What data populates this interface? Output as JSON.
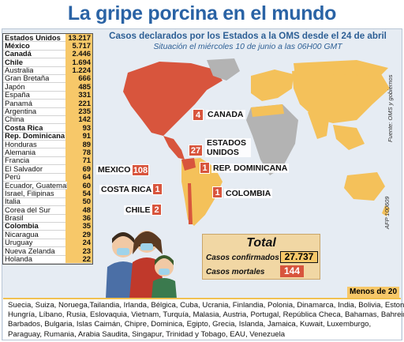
{
  "title": "La gripe porcina en el mundo",
  "heading": "Casos declarados por los Estados a la OMS desde el 24 de abril",
  "subheading": "Situación el miércoles 10 de junio a las 06H00 GMT",
  "countries": [
    {
      "name": "Estados Unidos",
      "value": "13.217",
      "bold": true
    },
    {
      "name": "México",
      "value": "5.717",
      "bold": true
    },
    {
      "name": "Canadá",
      "value": "2.446",
      "bold": true
    },
    {
      "name": "Chile",
      "value": "1.694",
      "bold": true
    },
    {
      "name": "Australia",
      "value": "1.224",
      "bold": false
    },
    {
      "name": "Gran Bretaña",
      "value": "666",
      "bold": false
    },
    {
      "name": "Japón",
      "value": "485",
      "bold": false
    },
    {
      "name": "España",
      "value": "331",
      "bold": false
    },
    {
      "name": "Panamá",
      "value": "221",
      "bold": false
    },
    {
      "name": "Argentina",
      "value": "235",
      "bold": false
    },
    {
      "name": "China",
      "value": "142",
      "bold": false
    },
    {
      "name": "Costa Rica",
      "value": "93",
      "bold": true
    },
    {
      "name": "Rep. Dominicana",
      "value": "91",
      "bold": true
    },
    {
      "name": "Honduras",
      "value": "89",
      "bold": false
    },
    {
      "name": "Alemania",
      "value": "78",
      "bold": false
    },
    {
      "name": "Francia",
      "value": "71",
      "bold": false
    },
    {
      "name": "El Salvador",
      "value": "69",
      "bold": false
    },
    {
      "name": "Perú",
      "value": "64",
      "bold": false
    },
    {
      "name": "Ecuador, Guatemala",
      "value": "60",
      "bold": false
    },
    {
      "name": "Israel, Filipinas",
      "value": "54",
      "bold": false
    },
    {
      "name": "Italia",
      "value": "50",
      "bold": false
    },
    {
      "name": "Corea del Sur",
      "value": "48",
      "bold": false
    },
    {
      "name": "Brasil",
      "value": "36",
      "bold": false
    },
    {
      "name": "Colombia",
      "value": "35",
      "bold": true
    },
    {
      "name": "Nicaragua",
      "value": "29",
      "bold": false
    },
    {
      "name": "Uruguay",
      "value": "24",
      "bold": false
    },
    {
      "name": "Nueva Zelanda",
      "value": "23",
      "bold": false
    },
    {
      "name": "Holanda",
      "value": "22",
      "bold": false
    }
  ],
  "map_labels": {
    "canada": {
      "name": "CANADA",
      "value": "4"
    },
    "usa": {
      "name": "ESTADOS UNIDOS",
      "value": "27"
    },
    "mexico": {
      "name": "MEXICO",
      "value": "108"
    },
    "repdom": {
      "name": "REP. DOMINICANA",
      "value": "1"
    },
    "costarica": {
      "name": "COSTA RICA",
      "value": "1"
    },
    "colombia": {
      "name": "COLOMBIA",
      "value": "1"
    },
    "chile": {
      "name": "CHILE",
      "value": "2"
    }
  },
  "source": "Fuente: OMS y gobiernos",
  "code": "AFP 100609",
  "totals": {
    "title": "Total",
    "confirmed_label": "Casos confirmados",
    "confirmed_value": "27.737",
    "deaths_label": "Casos mortales",
    "deaths_value": "144"
  },
  "less_than_label": "Menos de 20",
  "less_than_lines": [
    "Suecia, Suiza, Noruega,Tailandia, Irlanda, Bélgica, Cuba, Ucrania, Finlandia, Polonia, Dinamarca, India, Bolivia, Estonia,",
    "Hungría, Líbano, Rusia, Eslovaquia, Vietnam, Turquía, Malasia, Austria, Portugal, República Checa, Bahamas, Bahrein,",
    "Barbados, Bulgaria, Islas Caimán, Chipre, Dominica, Egipto, Grecia, Islanda, Jamaica, Kuwait, Luxemburgo,",
    "Paraguay, Rumania, Arabia Saudita, Singapur, Trinidad y Tobago, EAU, Venezuela"
  ],
  "colors": {
    "title": "#2a63a5",
    "affected": "#f4c15a",
    "highlight": "#d8553d",
    "unaffected": "#b3b3b3"
  }
}
